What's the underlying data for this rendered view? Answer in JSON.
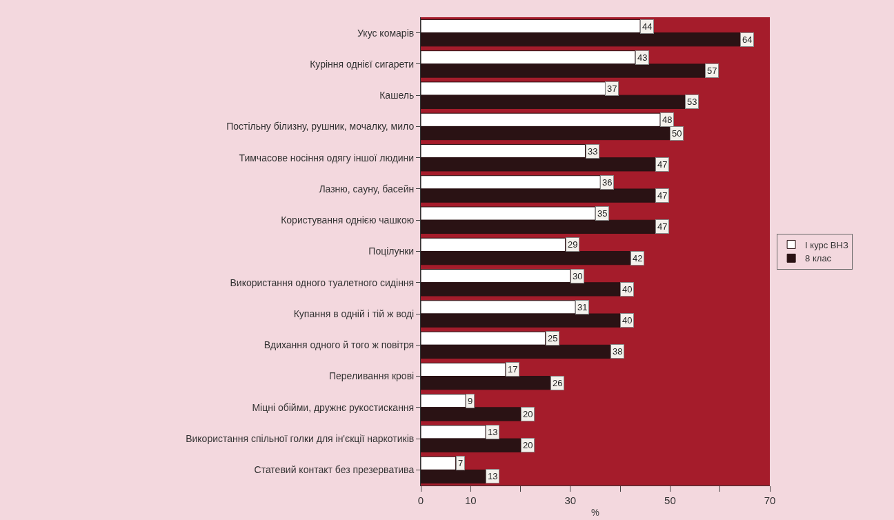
{
  "chart_data": {
    "type": "bar",
    "orientation": "horizontal",
    "xlabel": "%",
    "categories": [
      "Укус комарів",
      "Куріння однієї сигарети",
      "Кашель",
      "Постільну білизну, рушник, мочалку, мило",
      "Тимчасове носіння одягу іншої людини",
      "Лазню, сауну, басейн",
      "Користування однією чашкою",
      "Поцілунки",
      "Використання одного туалетного сидіння",
      "Купання в одній і тій ж воді",
      "Вдихання одного й того ж повітря",
      "Переливання крові",
      "Міцні обійми, дружнє рукостискання",
      "Використання спільної голки для ін'єкції наркотиків",
      "Статевий контакт без презерватива"
    ],
    "series": [
      {
        "name": "I курс ВНЗ",
        "color": "#ffffff",
        "values": [
          44,
          43,
          37,
          48,
          33,
          36,
          35,
          29,
          30,
          31,
          25,
          17,
          9,
          13,
          7
        ]
      },
      {
        "name": "8 клас",
        "color": "#2a1214",
        "values": [
          64,
          57,
          53,
          50,
          47,
          47,
          47,
          42,
          40,
          40,
          38,
          26,
          20,
          20,
          13
        ]
      }
    ],
    "xlim": [
      0,
      70
    ],
    "xticks": [
      0,
      10,
      {
        "value": 20,
        "label": null
      },
      30,
      {
        "value": 40,
        "label": null
      },
      50,
      {
        "value": 60,
        "label": null
      },
      70
    ],
    "data_labels": true,
    "legend": "right",
    "grid": false
  }
}
